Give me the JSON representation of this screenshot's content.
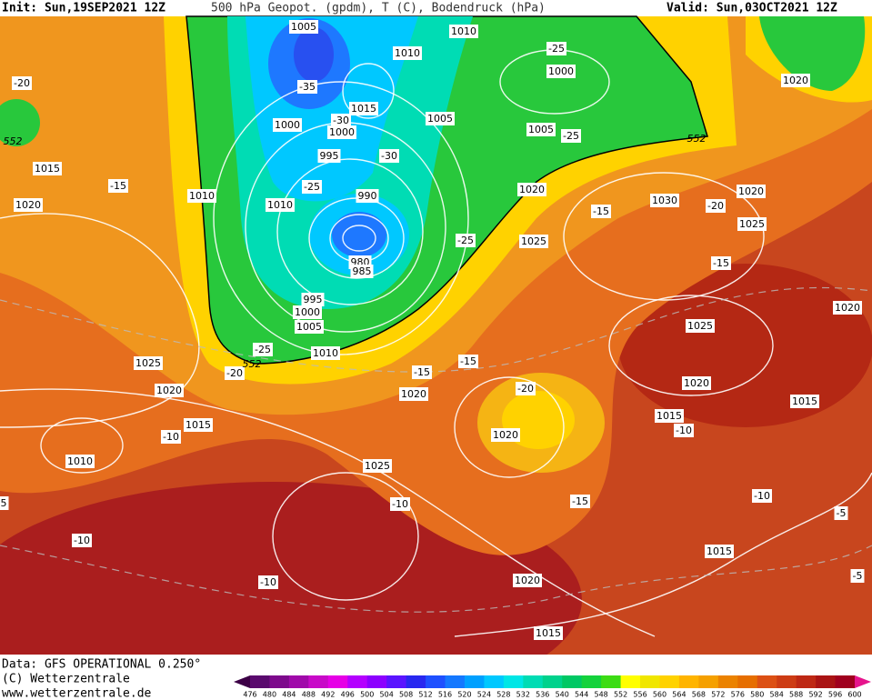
{
  "header": {
    "init": "Init: Sun,19SEP2021 12Z",
    "title": "500 hPa Geopot. (gpdm), T (C), Bodendruck (hPa)",
    "valid": "Valid: Sun,03OCT2021 12Z"
  },
  "footer": {
    "source": "Data: GFS OPERATIONAL 0.250°",
    "copyright": "(C) Wetterzentrale",
    "url": "www.wetterzentrale.de"
  },
  "legend": {
    "values": [
      476,
      480,
      484,
      488,
      492,
      496,
      500,
      504,
      508,
      512,
      516,
      520,
      524,
      528,
      532,
      536,
      540,
      544,
      548,
      552,
      556,
      560,
      564,
      568,
      572,
      576,
      580,
      584,
      588,
      592,
      596,
      600
    ],
    "colors": [
      "#3c0046",
      "#5a0a6e",
      "#7d0a8c",
      "#a00aaa",
      "#c80ac8",
      "#e600e6",
      "#b400ff",
      "#8c00ff",
      "#5a14ff",
      "#2828f0",
      "#1e50ff",
      "#1478ff",
      "#00a0ff",
      "#00c8ff",
      "#00e6e6",
      "#00dcb4",
      "#00d28c",
      "#00c864",
      "#14d23c",
      "#3cdc14",
      "#ffff00",
      "#f0e600",
      "#ffd200",
      "#ffb400",
      "#f5a000",
      "#eb8200",
      "#e66e00",
      "#dc5014",
      "#cd3c14",
      "#be2814",
      "#aa1414",
      "#a0001e",
      "#e6148c"
    ]
  },
  "map": {
    "pressure_labels": [
      "1005",
      "1010",
      "1010",
      "1000",
      "1020",
      "1015",
      "1005",
      "1000",
      "1000",
      "1005",
      "995",
      "1015",
      "1010",
      "1010",
      "990",
      "1020",
      "1030",
      "1020",
      "1020",
      "1025",
      "1025",
      "980",
      "985",
      "995",
      "1000",
      "1005",
      "1010",
      "1025",
      "1020",
      "1025",
      "1020",
      "1020",
      "1020",
      "1015",
      "1015",
      "1015",
      "1020",
      "1010",
      "1025",
      "1015",
      "1020",
      "1015",
      "5"
    ],
    "temperature_labels": [
      "-20",
      "-35",
      "-30",
      "-30",
      "-25",
      "-25",
      "-25",
      "-15",
      "-15",
      "-20",
      "-25",
      "-15",
      "-25",
      "-20",
      "-15",
      "-15",
      "-20",
      "-10",
      "-10",
      "-10",
      "-10",
      "-15",
      "-5",
      "-10",
      "-10",
      "-5"
    ],
    "geopotential_labels": [
      "552",
      "552",
      "552"
    ]
  }
}
